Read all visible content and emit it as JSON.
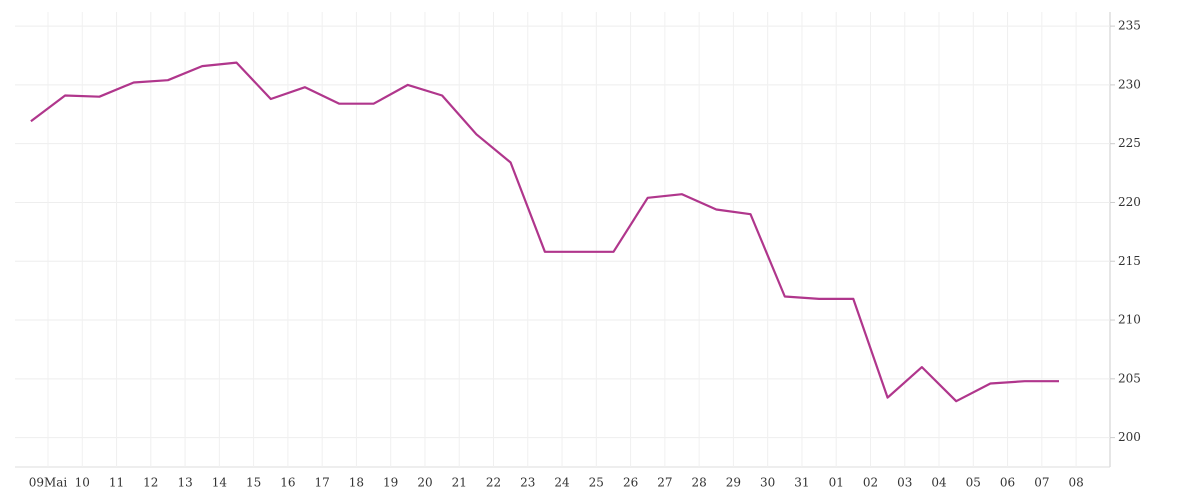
{
  "chart_data": {
    "type": "line",
    "categories": [
      "09Mai",
      "10",
      "11",
      "12",
      "13",
      "14",
      "15",
      "16",
      "17",
      "18",
      "19",
      "20",
      "21",
      "22",
      "23",
      "24",
      "25",
      "26",
      "27",
      "28",
      "29",
      "30",
      "31",
      "01",
      "02",
      "03",
      "04",
      "05",
      "06",
      "07",
      "08"
    ],
    "values": [
      226.9,
      229.1,
      229.0,
      230.2,
      230.4,
      231.6,
      231.9,
      228.8,
      229.8,
      228.4,
      228.4,
      230.0,
      229.1,
      225.8,
      223.4,
      215.8,
      215.8,
      215.8,
      220.4,
      220.7,
      219.4,
      219.0,
      212.0,
      211.8,
      211.8,
      203.4,
      206.0,
      203.1,
      204.6,
      204.8,
      204.8
    ],
    "color": "#b0368c",
    "ylim": [
      197.5,
      236.2
    ],
    "yticks": [
      200,
      205,
      210,
      215,
      220,
      225,
      230,
      235
    ],
    "grid": true
  }
}
